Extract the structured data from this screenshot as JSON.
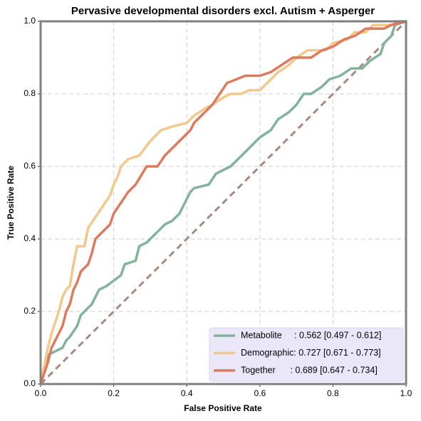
{
  "chart_data": {
    "type": "line",
    "title": "Pervasive developmental disorders excl. Autism + Asperger",
    "x_label": "False Positive Rate",
    "y_label": "True Positive Rate",
    "xlim": [
      0,
      1
    ],
    "ylim": [
      0,
      1
    ],
    "xticks": [
      {
        "value": 0,
        "label": "0.0"
      },
      0.2,
      0.4,
      0.6,
      0.8,
      {
        "value": 1,
        "label": "1.0"
      }
    ],
    "yticks": [
      {
        "value": 0,
        "label": "0.0"
      },
      0.2,
      0.4,
      0.6,
      0.8,
      {
        "value": 1,
        "label": "1.0"
      }
    ],
    "grid": true,
    "legend": "lower right",
    "series": [
      {
        "name": "Metabolite     : 0.562 [0.497 - 0.612]",
        "color": "#82b39b",
        "x": [
          0,
          0.01,
          0.02,
          0.04,
          0.06,
          0.07,
          0.08,
          0.1,
          0.11,
          0.12,
          0.14,
          0.16,
          0.18,
          0.22,
          0.23,
          0.26,
          0.27,
          0.29,
          0.3,
          0.33,
          0.34,
          0.36,
          0.38,
          0.39,
          0.4,
          0.41,
          0.42,
          0.46,
          0.48,
          0.5,
          0.52,
          0.55,
          0.58,
          0.6,
          0.63,
          0.65,
          0.68,
          0.7,
          0.72,
          0.74,
          0.77,
          0.79,
          0.82,
          0.85,
          0.88,
          0.9,
          0.93,
          0.94,
          0.96,
          0.97,
          1
        ],
        "values": [
          0,
          0.05,
          0.08,
          0.09,
          0.1,
          0.12,
          0.13,
          0.16,
          0.19,
          0.2,
          0.22,
          0.26,
          0.27,
          0.3,
          0.33,
          0.34,
          0.38,
          0.39,
          0.4,
          0.43,
          0.44,
          0.45,
          0.47,
          0.49,
          0.51,
          0.53,
          0.54,
          0.55,
          0.58,
          0.59,
          0.6,
          0.63,
          0.66,
          0.68,
          0.7,
          0.73,
          0.75,
          0.77,
          0.8,
          0.8,
          0.82,
          0.84,
          0.85,
          0.87,
          0.87,
          0.89,
          0.91,
          0.94,
          0.96,
          0.99,
          1
        ]
      },
      {
        "name": "Demographic: 0.727 [0.671 - 0.773]",
        "color": "#f2c98a",
        "x": [
          0,
          0.01,
          0.02,
          0.03,
          0.04,
          0.05,
          0.06,
          0.07,
          0.08,
          0.09,
          0.1,
          0.12,
          0.13,
          0.15,
          0.17,
          0.19,
          0.2,
          0.21,
          0.22,
          0.24,
          0.27,
          0.3,
          0.33,
          0.36,
          0.4,
          0.42,
          0.45,
          0.47,
          0.5,
          0.52,
          0.55,
          0.57,
          0.6,
          0.63,
          0.65,
          0.68,
          0.7,
          0.73,
          0.78,
          0.8,
          0.84,
          0.86,
          0.89,
          0.91,
          0.96,
          0.98,
          1
        ],
        "values": [
          0,
          0.05,
          0.1,
          0.14,
          0.17,
          0.2,
          0.24,
          0.26,
          0.27,
          0.33,
          0.38,
          0.38,
          0.43,
          0.46,
          0.49,
          0.52,
          0.55,
          0.57,
          0.6,
          0.62,
          0.63,
          0.67,
          0.7,
          0.71,
          0.72,
          0.74,
          0.76,
          0.77,
          0.79,
          0.8,
          0.8,
          0.81,
          0.81,
          0.84,
          0.86,
          0.88,
          0.9,
          0.92,
          0.92,
          0.94,
          0.95,
          0.97,
          0.97,
          0.99,
          0.99,
          1,
          1
        ]
      },
      {
        "name": "Together      : 0.689 [0.647 - 0.734]",
        "color": "#e07a5f",
        "x": [
          0,
          0.01,
          0.02,
          0.03,
          0.04,
          0.05,
          0.06,
          0.07,
          0.08,
          0.09,
          0.1,
          0.11,
          0.12,
          0.13,
          0.14,
          0.15,
          0.17,
          0.19,
          0.2,
          0.22,
          0.24,
          0.26,
          0.29,
          0.32,
          0.34,
          0.36,
          0.39,
          0.41,
          0.42,
          0.45,
          0.47,
          0.49,
          0.51,
          0.56,
          0.6,
          0.63,
          0.66,
          0.69,
          0.74,
          0.77,
          0.8,
          0.83,
          0.86,
          0.89,
          0.94,
          0.96,
          1
        ],
        "values": [
          0,
          0.03,
          0.06,
          0.1,
          0.12,
          0.14,
          0.16,
          0.2,
          0.22,
          0.26,
          0.28,
          0.31,
          0.32,
          0.33,
          0.36,
          0.4,
          0.42,
          0.44,
          0.47,
          0.5,
          0.53,
          0.55,
          0.6,
          0.6,
          0.63,
          0.65,
          0.68,
          0.7,
          0.72,
          0.75,
          0.77,
          0.8,
          0.83,
          0.85,
          0.85,
          0.86,
          0.88,
          0.9,
          0.9,
          0.92,
          0.93,
          0.95,
          0.96,
          0.98,
          0.98,
          0.99,
          1
        ]
      }
    ]
  }
}
